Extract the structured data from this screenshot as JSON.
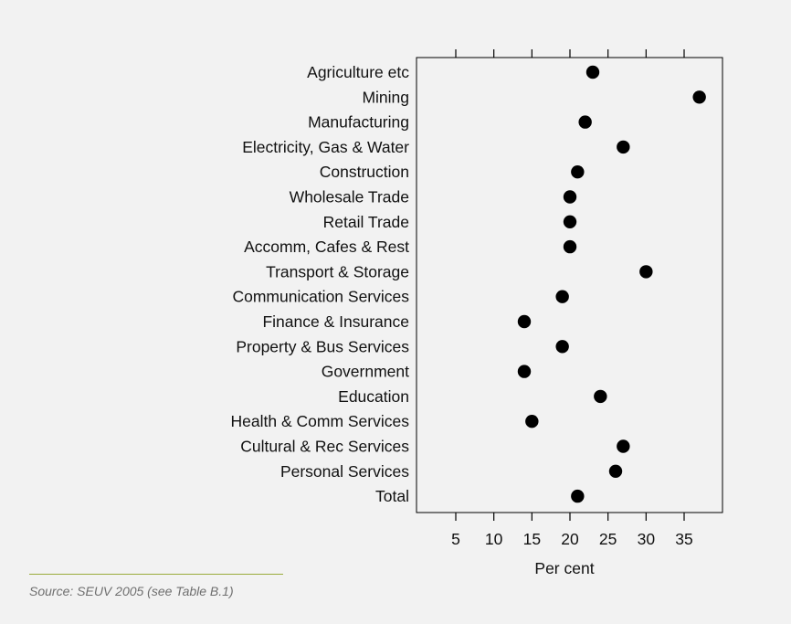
{
  "chart_data": {
    "type": "scatter",
    "categories": [
      "Agriculture etc",
      "Mining",
      "Manufacturing",
      "Electricity, Gas & Water",
      "Construction",
      "Wholesale Trade",
      "Retail Trade",
      "Accomm, Cafes & Rest",
      "Transport & Storage",
      "Communication Services",
      "Finance & Insurance",
      "Property & Bus Services",
      "Government",
      "Education",
      "Health & Comm Services",
      "Cultural & Rec Services",
      "Personal Services",
      "Total"
    ],
    "values": [
      23,
      37,
      22,
      27,
      21,
      20,
      20,
      20,
      30,
      19,
      14,
      19,
      14,
      24,
      15,
      27,
      26,
      21
    ],
    "xlabel": "Per cent",
    "ylabel": "",
    "xlim": [
      0,
      40
    ],
    "xticks": [
      5,
      10,
      15,
      20,
      25,
      30,
      35
    ],
    "grid": false,
    "marker_color": "#000000"
  },
  "source": {
    "text": "Source: SEUV 2005 (see Table B.1)",
    "rule_color": "#9aab3c"
  }
}
